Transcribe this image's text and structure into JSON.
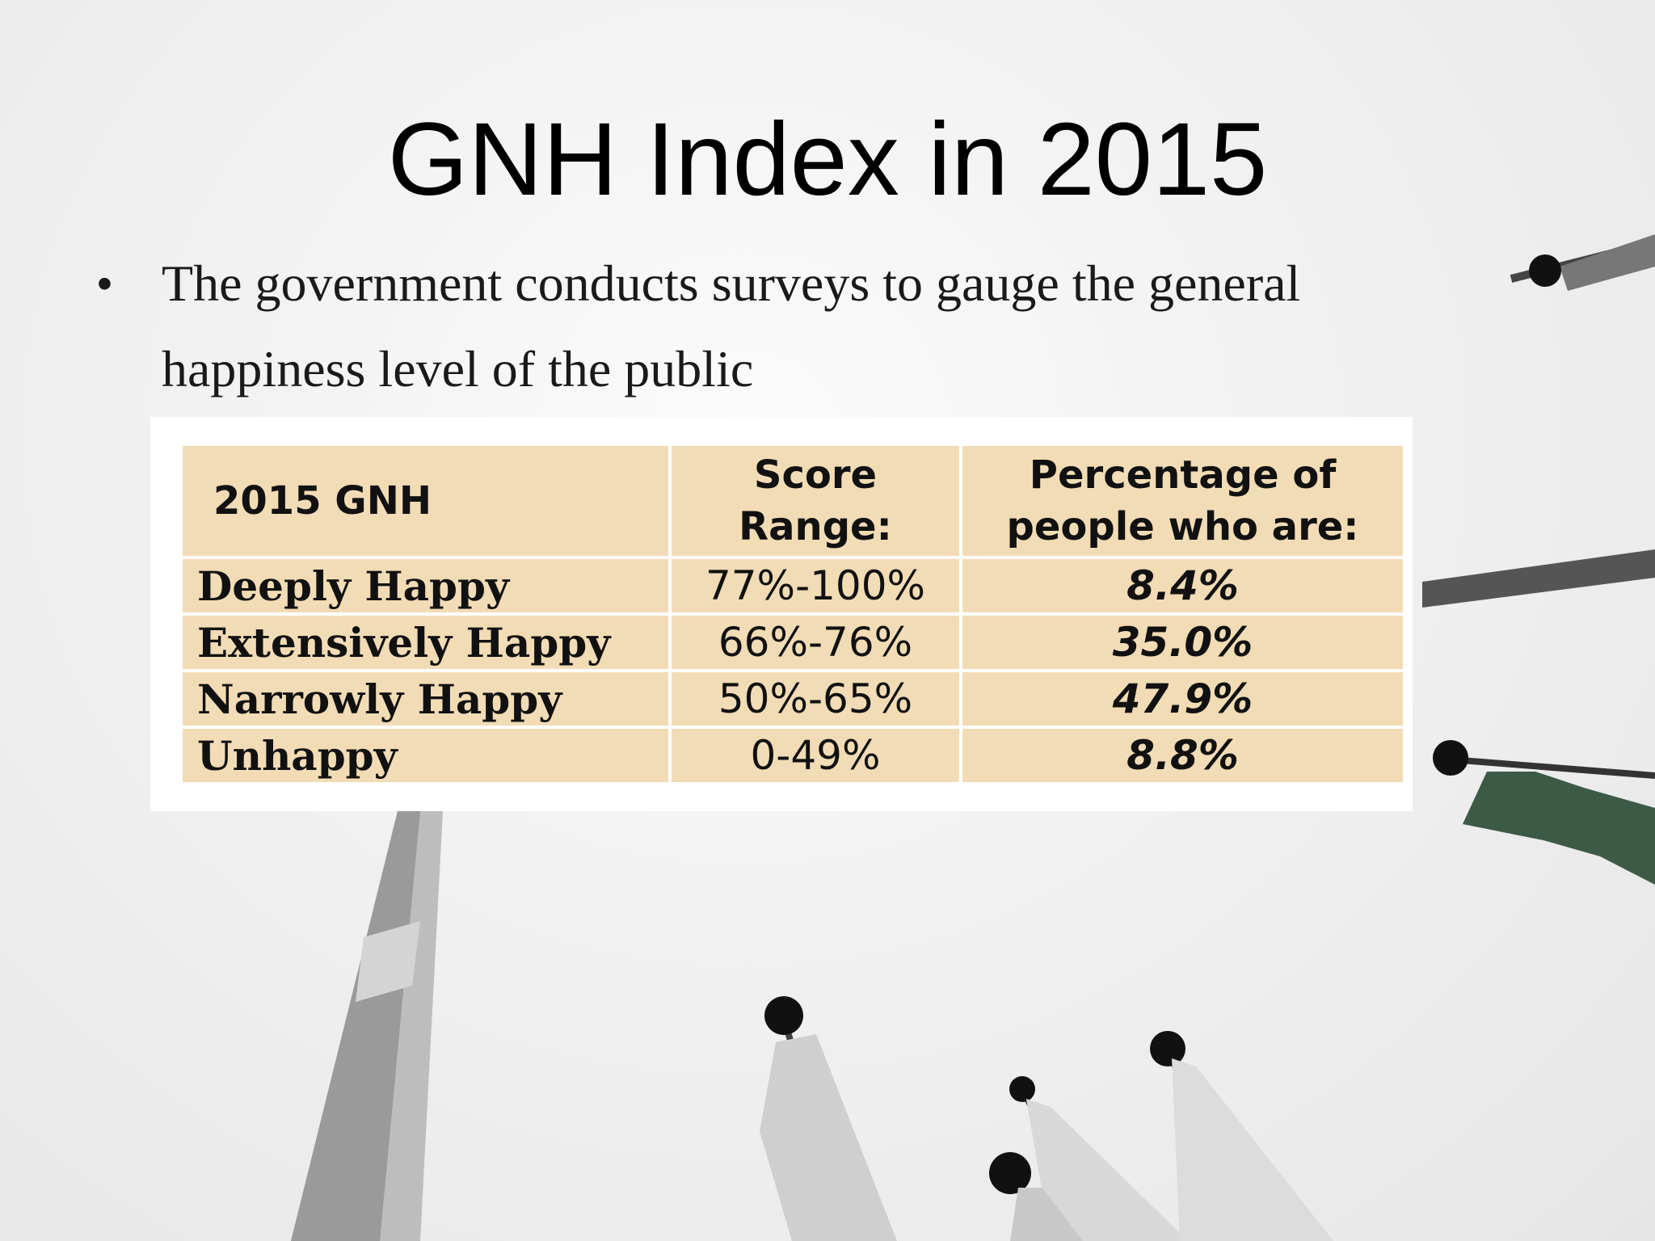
{
  "slide": {
    "title": "GNH Index in 2015",
    "bullet": "The government conducts surveys to gauge the general happiness level of the public",
    "bullet_glyph": "•"
  },
  "table": {
    "headers": {
      "category": "2015 GNH",
      "score_line1": "Score",
      "score_line2": "Range:",
      "pct_line1": "Percentage of",
      "pct_line2": "people who are:"
    },
    "rows": [
      {
        "category": "Deeply Happy",
        "range": "77%-100%",
        "pct": "8.4%"
      },
      {
        "category": "Extensively Happy",
        "range": "66%-76%",
        "pct": "35.0%"
      },
      {
        "category": "Narrowly Happy",
        "range": "50%-65%",
        "pct": "47.9%"
      },
      {
        "category": "Unhappy",
        "range": "0-49%",
        "pct": "8.8%"
      }
    ]
  },
  "colors": {
    "table_fill": "#f2dcb6",
    "flag_green": "#3d5a47"
  },
  "background": {
    "scene": "monochrome sky photo with prayer flag poles"
  }
}
